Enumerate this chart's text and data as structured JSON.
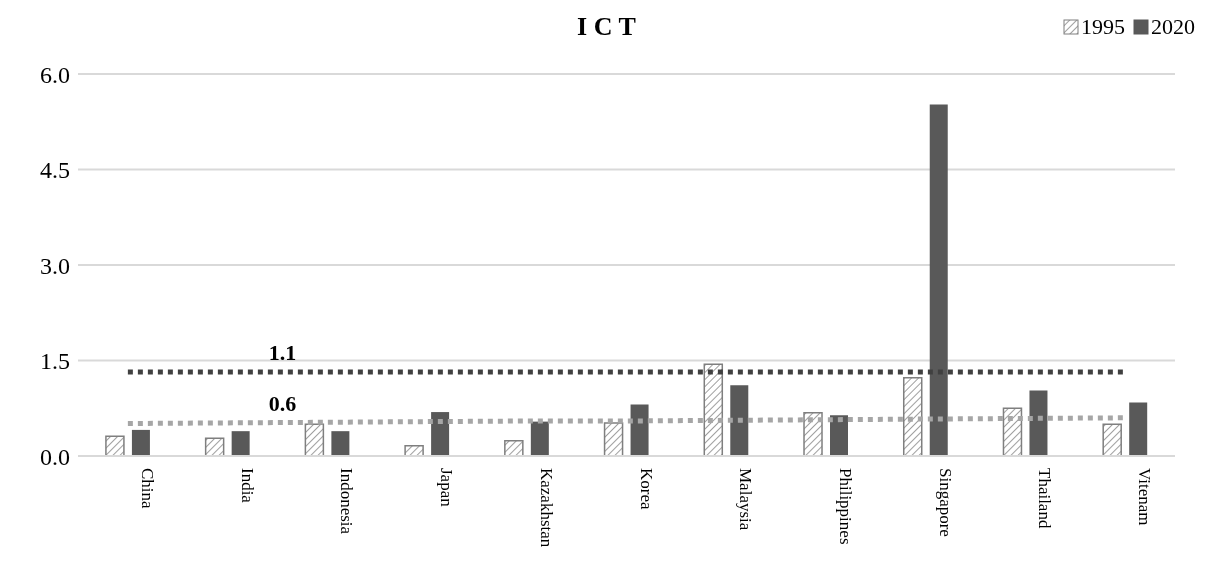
{
  "chart_data": {
    "type": "bar",
    "title": "I C T",
    "categories": [
      "China",
      "India",
      "Indonesia",
      "Japan",
      "Kazakhstan",
      "Korea",
      "Malaysia",
      "Philippines",
      "Singapore",
      "Thailand",
      "Vitenam"
    ],
    "series": [
      {
        "name": "1995",
        "color": "#7f7f7f",
        "values": [
          0.31,
          0.28,
          0.5,
          0.16,
          0.24,
          0.52,
          1.44,
          0.68,
          1.23,
          0.75,
          0.5
        ]
      },
      {
        "name": "2020",
        "color": "#595959",
        "values": [
          0.41,
          0.39,
          0.39,
          0.69,
          0.54,
          0.81,
          1.11,
          0.64,
          5.52,
          1.03,
          0.84
        ]
      },
      {
        "type": "line",
        "color": "#404040",
        "line_style": "dotted",
        "values": [
          1.32,
          1.32,
          1.32,
          1.32,
          1.32,
          1.32,
          1.32,
          1.32,
          1.32,
          1.32,
          1.32
        ]
      },
      {
        "type": "line",
        "color": "#a6a6a6",
        "line_style": "dotted",
        "values": [
          0.51,
          0.52,
          0.53,
          0.54,
          0.55,
          0.55,
          0.56,
          0.57,
          0.58,
          0.59,
          0.6
        ]
      }
    ],
    "annotations": [
      "1.1",
      "0.6"
    ],
    "ylim": [
      0,
      6
    ],
    "yticks": [
      {
        "value": 0,
        "label": "0.0"
      },
      {
        "value": 1.5,
        "label": "1.5"
      },
      {
        "value": 3,
        "label": "3.0"
      },
      {
        "value": 4.5,
        "label": "4.5"
      },
      {
        "value": 6,
        "label": "6.0"
      }
    ],
    "grid": "y",
    "legend": "top right",
    "marker": "none"
  }
}
